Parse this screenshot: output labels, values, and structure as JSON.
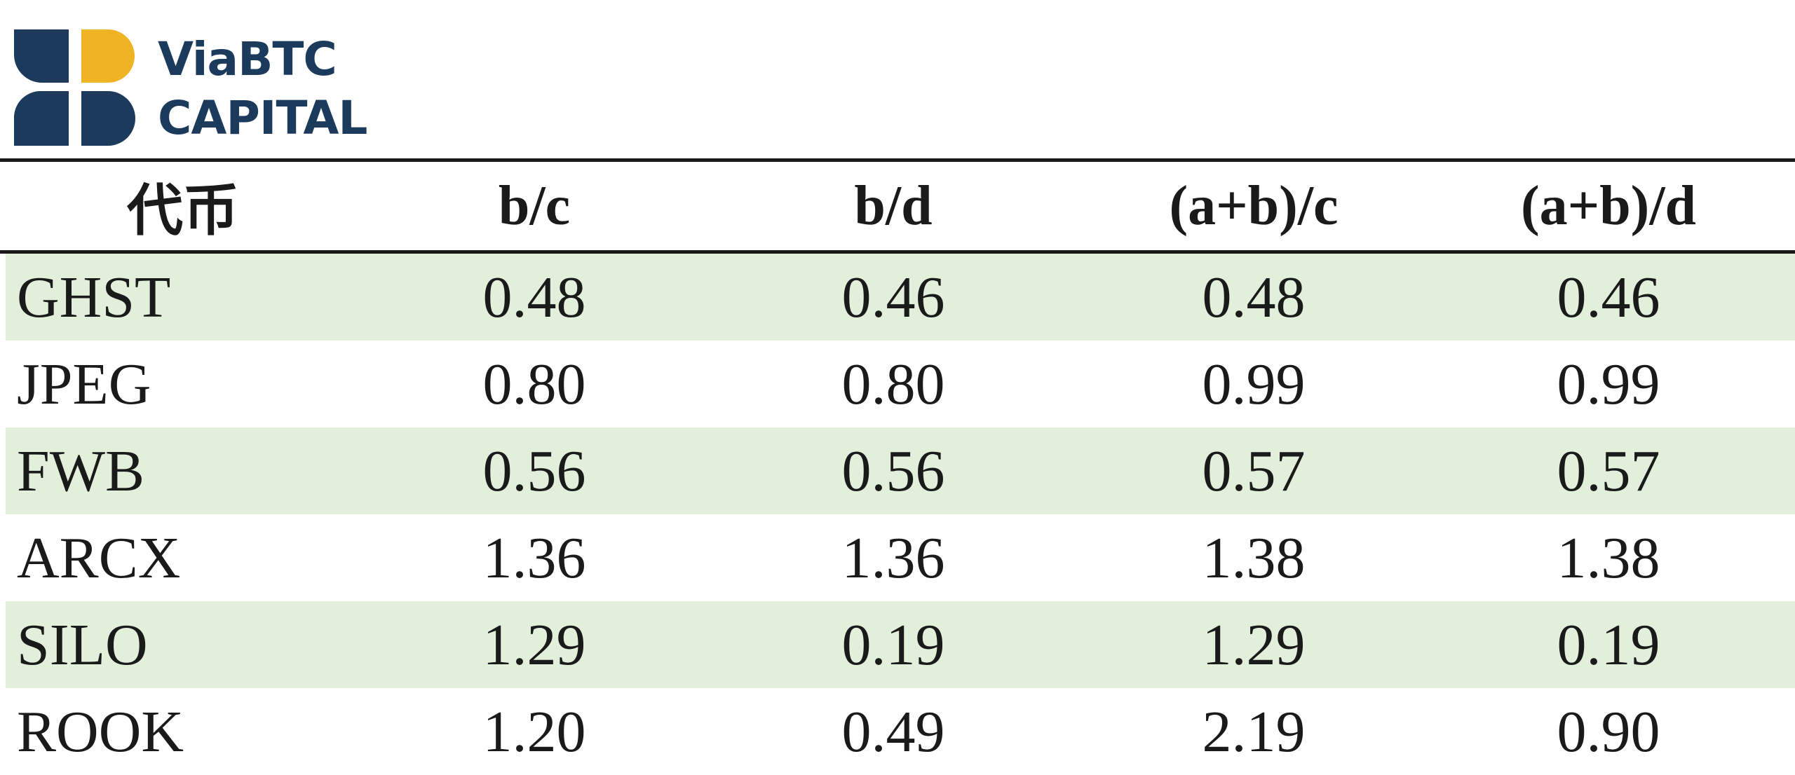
{
  "logo": {
    "line1": "ViaBTC",
    "line2": "CAPITAL"
  },
  "table": {
    "header": [
      "代币",
      "b/c",
      "b/d",
      "(a+b)/c",
      "(a+b)/d"
    ],
    "rows": [
      [
        "GHST",
        "0.48",
        "0.46",
        "0.48",
        "0.46"
      ],
      [
        "JPEG",
        "0.80",
        "0.80",
        "0.99",
        "0.99"
      ],
      [
        "FWB",
        "0.56",
        "0.56",
        "0.57",
        "0.57"
      ],
      [
        "ARCX",
        "1.36",
        "1.36",
        "1.38",
        "1.38"
      ],
      [
        "SILO",
        "1.29",
        "0.19",
        "1.29",
        "0.19"
      ],
      [
        "ROOK",
        "1.20",
        "0.49",
        "2.19",
        "0.90"
      ]
    ]
  }
}
